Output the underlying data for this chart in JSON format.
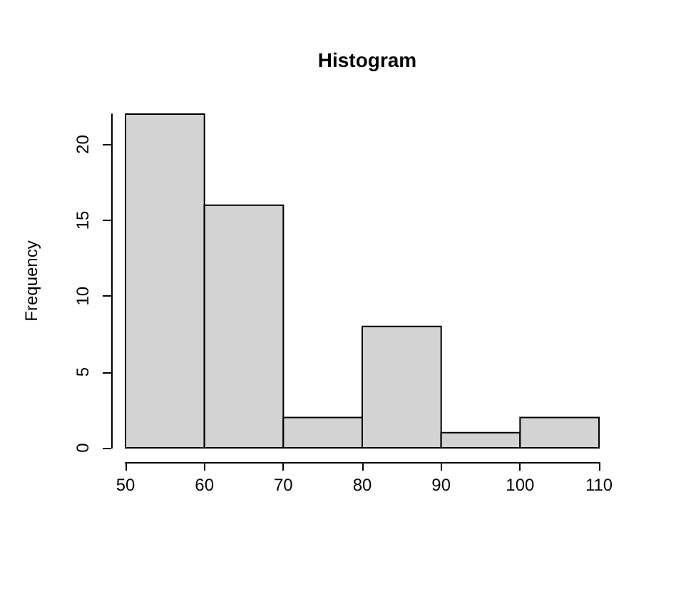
{
  "chart_data": {
    "type": "histogram",
    "title": "Histogram",
    "ylabel": "Frequency",
    "bins": [
      50,
      60,
      70,
      80,
      90,
      100,
      110
    ],
    "values": [
      22,
      16,
      2,
      8,
      1,
      2
    ],
    "color": "#d3d3d3",
    "xlim": [
      50,
      110
    ],
    "xticks": [
      50,
      60,
      70,
      80,
      90,
      100,
      110
    ],
    "ylim": [
      0,
      22
    ],
    "yticks": [
      0,
      5,
      10,
      15,
      20
    ]
  }
}
